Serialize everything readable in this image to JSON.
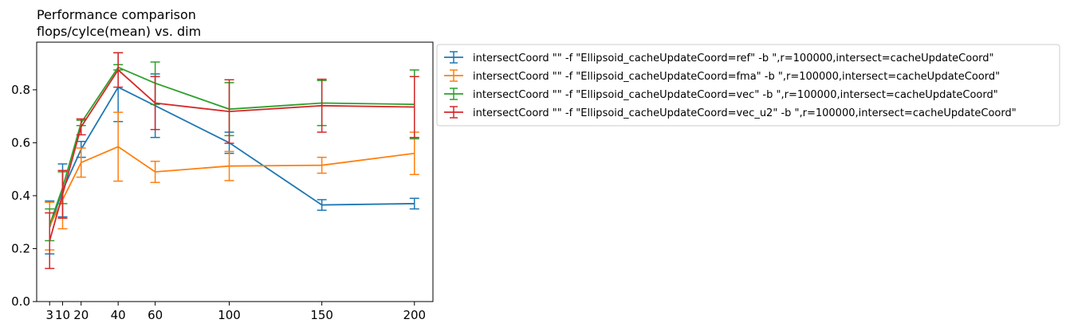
{
  "chart_data": {
    "type": "line",
    "title_lines": [
      "Performance comparison",
      "flops/cylce(mean) vs. dim"
    ],
    "xlabel": "",
    "ylabel": "",
    "x": [
      3,
      10,
      20,
      40,
      60,
      100,
      150,
      200
    ],
    "x_tick_labels": [
      "3",
      "10",
      "20",
      "40",
      "60",
      "100",
      "150",
      "200"
    ],
    "xlim": [
      -4,
      210
    ],
    "ylim": [
      0,
      0.98
    ],
    "y_ticks": [
      0.0,
      0.2,
      0.4,
      0.6,
      0.8
    ],
    "y_tick_labels": [
      "0.0",
      "0.2",
      "0.4",
      "0.6",
      "0.8"
    ],
    "grid": false,
    "error_bars": true,
    "legend_position": "outside-right",
    "series": [
      {
        "name": "intersectCoord \"\" -f \"Ellipsoid_cacheUpdateCoord=ref\" -b \",r=100000,intersect=cacheUpdateCoord\"",
        "color": "#1f77b4",
        "values": [
          0.28,
          0.42,
          0.575,
          0.81,
          0.74,
          0.6,
          0.365,
          0.37
        ],
        "errors": [
          0.1,
          0.1,
          0.03,
          0.13,
          0.12,
          0.04,
          0.02,
          0.02
        ]
      },
      {
        "name": "intersectCoord \"\" -f \"Ellipsoid_cacheUpdateCoord=fma\" -b \",r=100000,intersect=cacheUpdateCoord\"",
        "color": "#ff7f0e",
        "values": [
          0.285,
          0.385,
          0.525,
          0.585,
          0.49,
          0.512,
          0.515,
          0.56
        ],
        "errors": [
          0.09,
          0.11,
          0.055,
          0.13,
          0.04,
          0.055,
          0.03,
          0.08
        ]
      },
      {
        "name": "intersectCoord \"\" -f \"Ellipsoid_cacheUpdateCoord=vec\" -b \",r=100000,intersect=cacheUpdateCoord\"",
        "color": "#2ca02c",
        "values": [
          0.29,
          0.43,
          0.675,
          0.885,
          0.825,
          0.727,
          0.75,
          0.745
        ],
        "errors": [
          0.06,
          0.06,
          0.01,
          0.01,
          0.08,
          0.1,
          0.085,
          0.13
        ]
      },
      {
        "name": "intersectCoord \"\" -f \"Ellipsoid_cacheUpdateCoord=vec_u2\" -b \",r=100000,intersect=cacheUpdateCoord\"",
        "color": "#d62728",
        "values": [
          0.23,
          0.405,
          0.66,
          0.875,
          0.75,
          0.718,
          0.74,
          0.735
        ],
        "errors": [
          0.105,
          0.09,
          0.03,
          0.065,
          0.1,
          0.12,
          0.1,
          0.115
        ]
      }
    ]
  }
}
